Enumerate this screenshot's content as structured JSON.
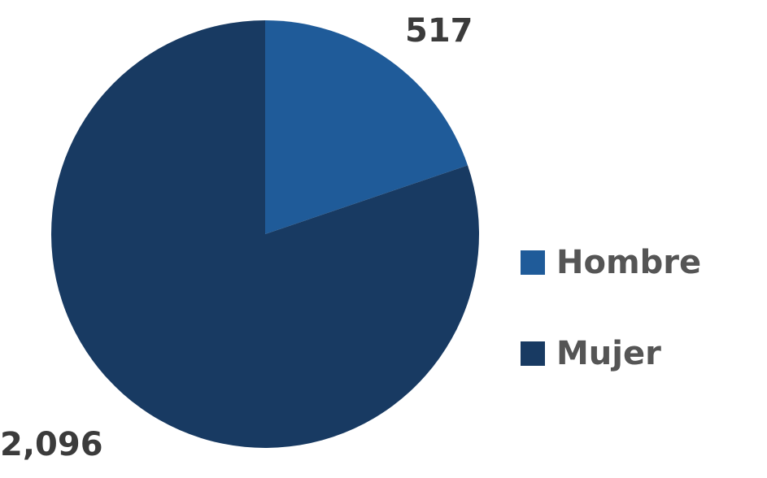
{
  "chart_data": {
    "type": "pie",
    "categories": [
      "Hombre",
      "Mujer"
    ],
    "values": [
      517,
      2096
    ],
    "value_labels": [
      "517",
      "2,096"
    ],
    "colors": [
      "#1f5b99",
      "#183a62"
    ],
    "title": "",
    "legend_position": "right",
    "legend": {
      "items": [
        {
          "label": "Hombre",
          "color": "#1f5b99"
        },
        {
          "label": "Mujer",
          "color": "#183a62"
        }
      ]
    }
  }
}
